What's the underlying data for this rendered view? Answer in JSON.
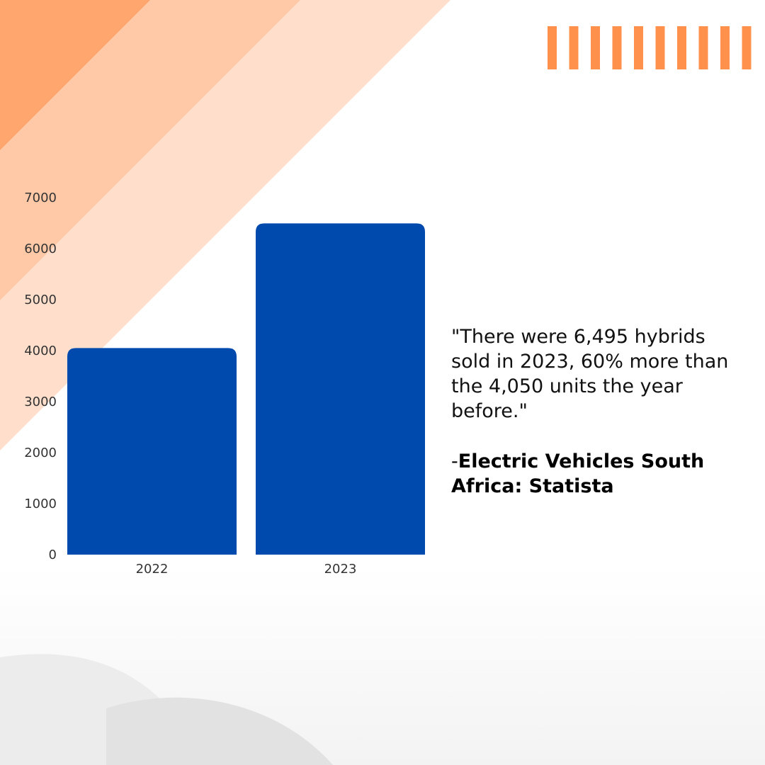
{
  "colors": {
    "bar": "#004aad",
    "accent_orange": "#ff914d",
    "stripe_dark": "#ffa56e",
    "stripe_mid": "#ffc9a7",
    "stripe_light": "#ffdfcb",
    "curve_gray": "#ececec"
  },
  "decor": {
    "stripe_count": 10
  },
  "chart_data": {
    "type": "bar",
    "categories": [
      "2022",
      "2023"
    ],
    "values": [
      4050,
      6495
    ],
    "ylim": [
      0,
      7000
    ],
    "yticks": [
      0,
      1000,
      2000,
      3000,
      4000,
      5000,
      6000,
      7000
    ],
    "title": "",
    "xlabel": "",
    "ylabel": "",
    "grid": false,
    "legend": "none"
  },
  "quote": {
    "text": "\"There were 6,495 hybrids sold in 2023, 60% more than the 4,050 units the year before.\"",
    "source_prefix": "-",
    "source_name": "Electric Vehicles South Africa: Statista"
  }
}
